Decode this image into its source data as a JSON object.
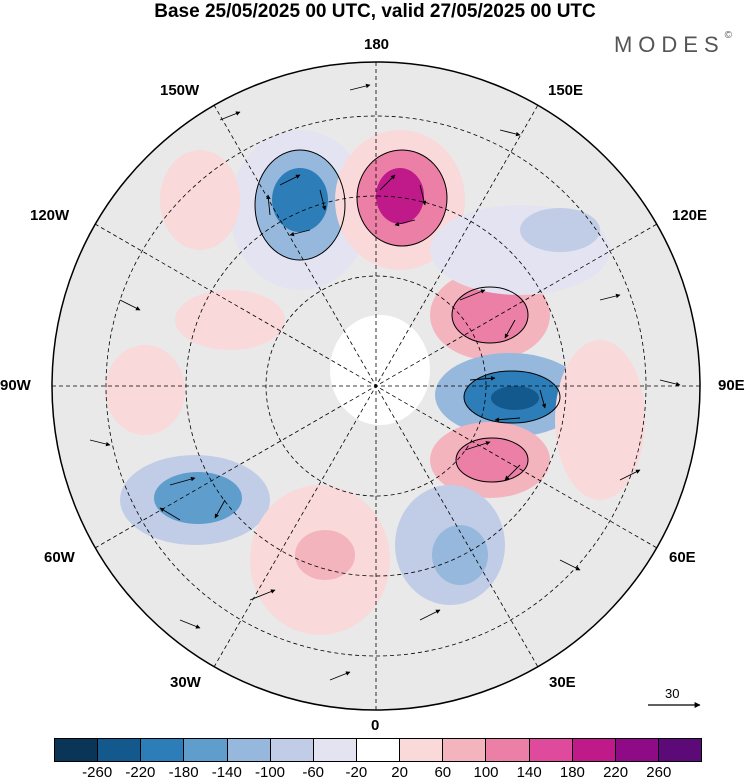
{
  "title": "Base 25/05/2025 00 UTC, valid 27/05/2025 00 UTC",
  "brand": {
    "text": "MODES",
    "mark": "©"
  },
  "lon_labels": {
    "top": "180",
    "bottom": "0",
    "left": "90W",
    "right": "90E",
    "nw1": "150W",
    "nw2": "120W",
    "ne1": "150E",
    "ne2": "120E",
    "sw1": "60W",
    "sw2": "30W",
    "se1": "60E",
    "se2": "30E"
  },
  "reference_vector": {
    "value": "30"
  },
  "colorbar": {
    "colors": [
      "#0b3556",
      "#14598d",
      "#2d7db8",
      "#5e9dcc",
      "#95b8dc",
      "#c1cde6",
      "#e4e3f1",
      "#ffffff",
      "#f9d9da",
      "#f4b4bd",
      "#ec7fa6",
      "#e04a9c",
      "#c01a8a",
      "#8e0a86",
      "#5c0a78"
    ],
    "ticks": [
      "-260",
      "-220",
      "-180",
      "-140",
      "-100",
      "-60",
      "-20",
      "20",
      "60",
      "100",
      "140",
      "180",
      "220",
      "260"
    ]
  },
  "anomalies": [
    {
      "name": "low-north-pacific",
      "sign": "neg",
      "level": 4
    },
    {
      "name": "high-bering",
      "sign": "pos",
      "level": 5
    },
    {
      "name": "high-siberia",
      "sign": "pos",
      "level": 3
    },
    {
      "name": "low-west-siberia",
      "sign": "neg",
      "level": 4
    },
    {
      "name": "high-kazakhstan",
      "sign": "pos",
      "level": 4
    },
    {
      "name": "low-east-us",
      "sign": "neg",
      "level": 3
    },
    {
      "name": "low-europe",
      "sign": "neg",
      "level": 2
    },
    {
      "name": "high-atlantic",
      "sign": "pos",
      "level": 2
    },
    {
      "name": "high-canada",
      "sign": "pos",
      "level": 2
    }
  ]
}
